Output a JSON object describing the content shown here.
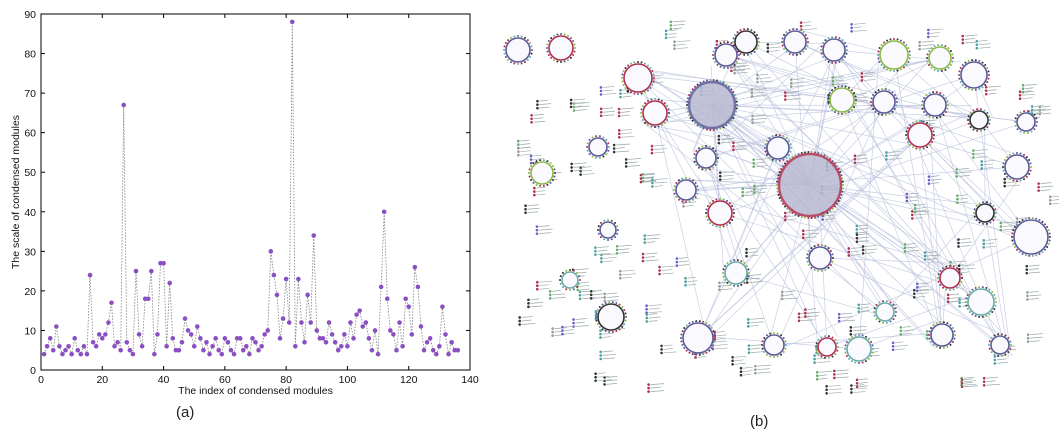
{
  "panels": {
    "a": {
      "label": "(a)"
    },
    "b": {
      "label": "(b)"
    }
  },
  "chart_data": {
    "type": "scatter",
    "xlabel": "The index of condensed modules",
    "ylabel": "The scale of condensed modules",
    "xlim": [
      0,
      140
    ],
    "ylim": [
      0,
      90
    ],
    "xticks": [
      0,
      20,
      40,
      60,
      80,
      100,
      120,
      140
    ],
    "yticks": [
      0,
      10,
      20,
      30,
      40,
      50,
      60,
      70,
      80,
      90
    ],
    "grid": false,
    "style": {
      "marker_color": "#8a4fc2",
      "line_color": "#808080",
      "line_style": "dotted"
    },
    "x": [
      1,
      2,
      3,
      4,
      5,
      6,
      7,
      8,
      9,
      10,
      11,
      12,
      13,
      14,
      15,
      16,
      17,
      18,
      19,
      20,
      21,
      22,
      23,
      24,
      25,
      26,
      27,
      28,
      29,
      30,
      31,
      32,
      33,
      34,
      35,
      36,
      37,
      38,
      39,
      40,
      41,
      42,
      43,
      44,
      45,
      46,
      47,
      48,
      49,
      50,
      51,
      52,
      53,
      54,
      55,
      56,
      57,
      58,
      59,
      60,
      61,
      62,
      63,
      64,
      65,
      66,
      67,
      68,
      69,
      70,
      71,
      72,
      73,
      74,
      75,
      76,
      77,
      78,
      79,
      80,
      81,
      82,
      83,
      84,
      85,
      86,
      87,
      88,
      89,
      90,
      91,
      92,
      93,
      94,
      95,
      96,
      97,
      98,
      99,
      100,
      101,
      102,
      103,
      104,
      105,
      106,
      107,
      108,
      109,
      110,
      111,
      112,
      113,
      114,
      115,
      116,
      117,
      118,
      119,
      120,
      121,
      122,
      123,
      124,
      125,
      126,
      127,
      128,
      129,
      130,
      131,
      132,
      133,
      134,
      135,
      136
    ],
    "y": [
      4,
      6,
      8,
      5,
      11,
      6,
      4,
      5,
      6,
      4,
      8,
      5,
      4,
      6,
      4,
      24,
      7,
      6,
      9,
      8,
      9,
      12,
      17,
      6,
      7,
      5,
      67,
      7,
      5,
      4,
      25,
      9,
      6,
      18,
      18,
      25,
      4,
      9,
      27,
      27,
      6,
      22,
      8,
      5,
      5,
      7,
      13,
      10,
      9,
      6,
      11,
      8,
      5,
      7,
      4,
      6,
      8,
      5,
      4,
      8,
      7,
      5,
      4,
      8,
      8,
      5,
      6,
      4,
      8,
      7,
      5,
      6,
      9,
      10,
      30,
      24,
      19,
      8,
      13,
      23,
      12,
      88,
      6,
      23,
      12,
      7,
      19,
      12,
      34,
      10,
      8,
      8,
      7,
      12,
      9,
      7,
      5,
      6,
      9,
      6,
      12,
      8,
      14,
      15,
      11,
      12,
      8,
      5,
      10,
      4,
      21,
      40,
      18,
      10,
      9,
      5,
      12,
      6,
      18,
      16,
      9,
      26,
      21,
      11,
      5,
      7,
      8,
      5,
      4,
      6,
      16,
      9,
      4,
      7,
      5,
      5
    ]
  },
  "network": {
    "nodes": [
      {
        "hub": "small",
        "text": ""
      },
      {
        "hub": "large",
        "text": ""
      }
    ],
    "colors": {
      "edge": "#b8bfdc",
      "hub_fill_grey": "#b9b9d2",
      "hub_ring_red": "#b03050",
      "hub_ring_blue": "#5a5a9a",
      "hub_ring_green": "#8ab84a",
      "hub_ring_teal": "#6aaaaa",
      "hub_ring_dark": "#333333"
    }
  }
}
